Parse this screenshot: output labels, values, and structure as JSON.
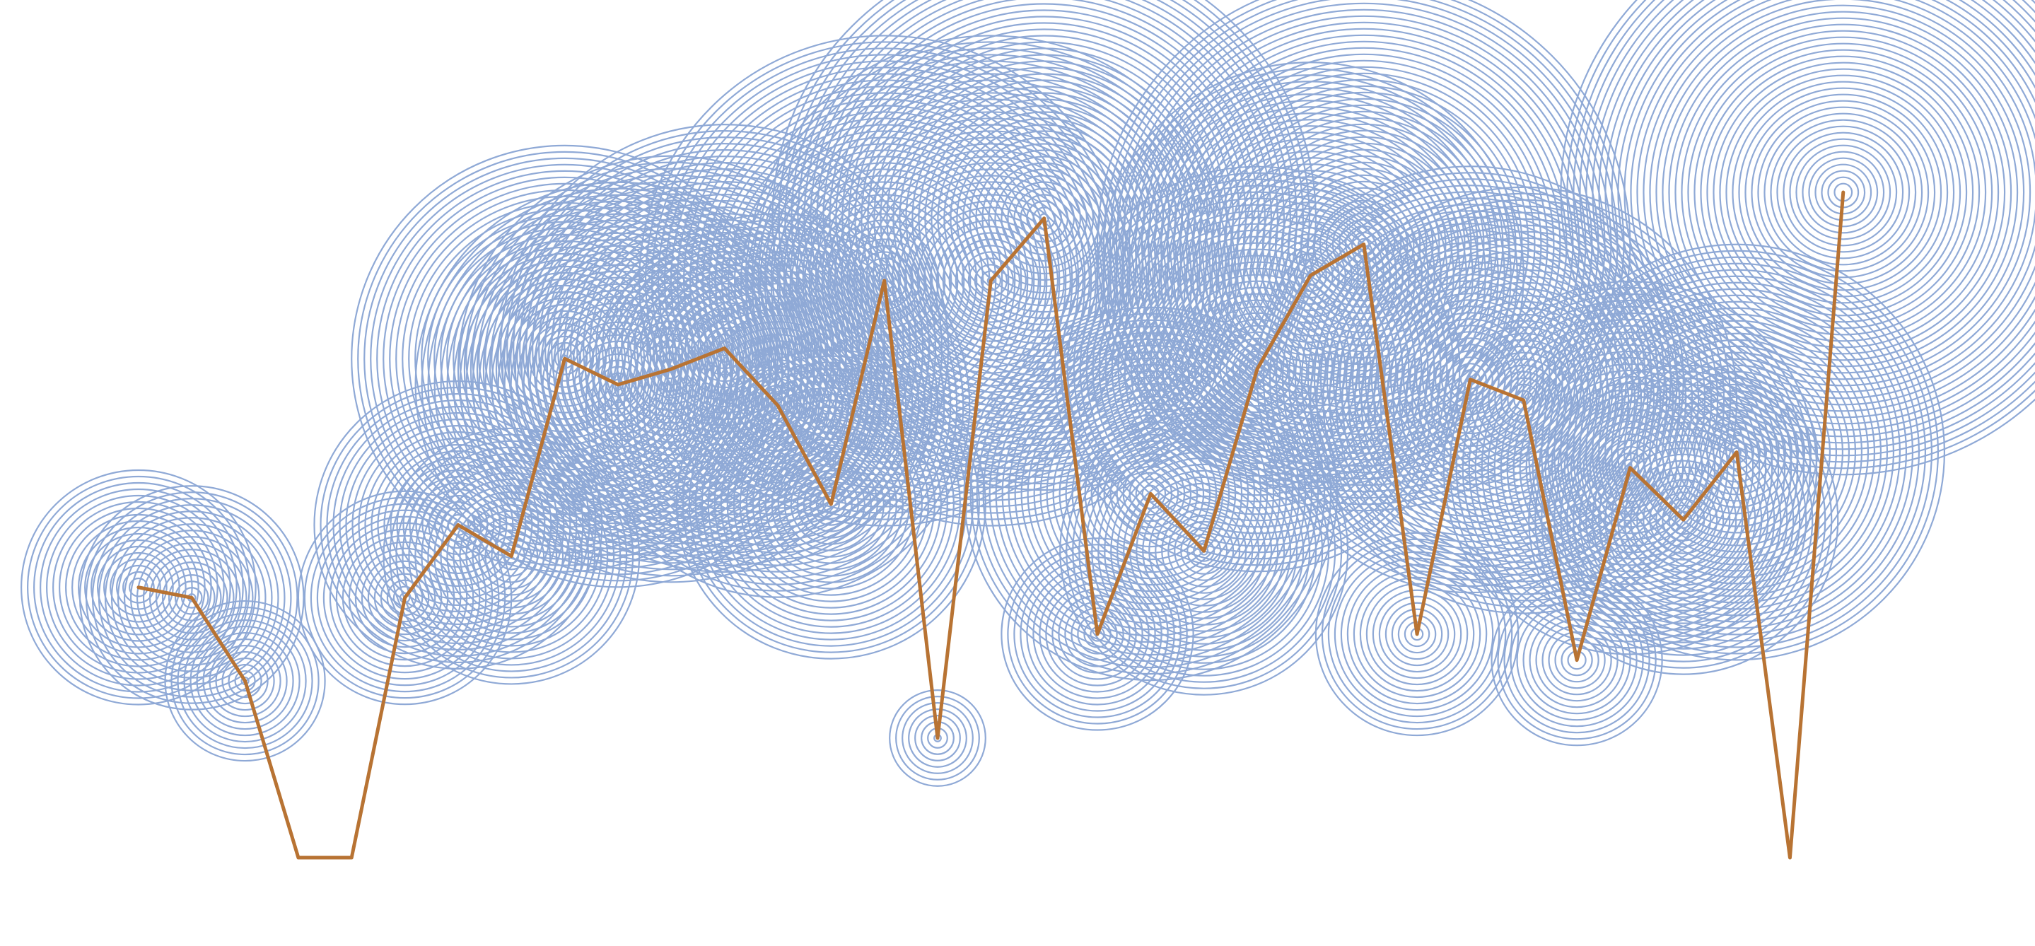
{
  "chart_data": {
    "type": "line",
    "title": "",
    "xlabel": "",
    "ylabel": "",
    "grid": false,
    "legend": "none",
    "xlim": [
      -2.6,
      35.6
    ],
    "ylim": [
      -1.7,
      16.5
    ],
    "x": [
      0,
      1,
      2,
      3,
      4,
      5,
      6,
      7,
      8,
      9,
      10,
      11,
      12,
      13,
      14,
      15,
      16,
      17,
      18,
      19,
      20,
      21,
      22,
      23,
      24,
      25,
      26,
      27,
      28,
      29,
      30,
      31,
      32
    ],
    "series": [
      {
        "values": [
          5.2,
          5.0,
          3.4,
          0.0,
          0.0,
          5.0,
          6.4,
          5.8,
          9.6,
          9.1,
          9.4,
          9.8,
          8.7,
          6.8,
          11.1,
          2.3,
          11.1,
          12.3,
          4.3,
          7.0,
          5.9,
          9.4,
          11.2,
          11.8,
          4.3,
          9.2,
          8.8,
          3.8,
          7.5,
          6.5,
          7.8,
          0.0,
          12.8
        ],
        "sizes": [
          2.2,
          2.1,
          1.5,
          0,
          0,
          2.0,
          2.7,
          2.4,
          4.0,
          3.8,
          4.0,
          4.2,
          3.6,
          2.9,
          4.6,
          0.9,
          4.6,
          5.1,
          1.8,
          3.5,
          2.7,
          3.8,
          4.0,
          5.0,
          1.9,
          4.0,
          4.0,
          1.6,
          3.5,
          2.9,
          3.9,
          0,
          5.3
        ]
      }
    ],
    "colors": {
      "line": "#b87333",
      "rings": "#8fa9d6"
    }
  }
}
